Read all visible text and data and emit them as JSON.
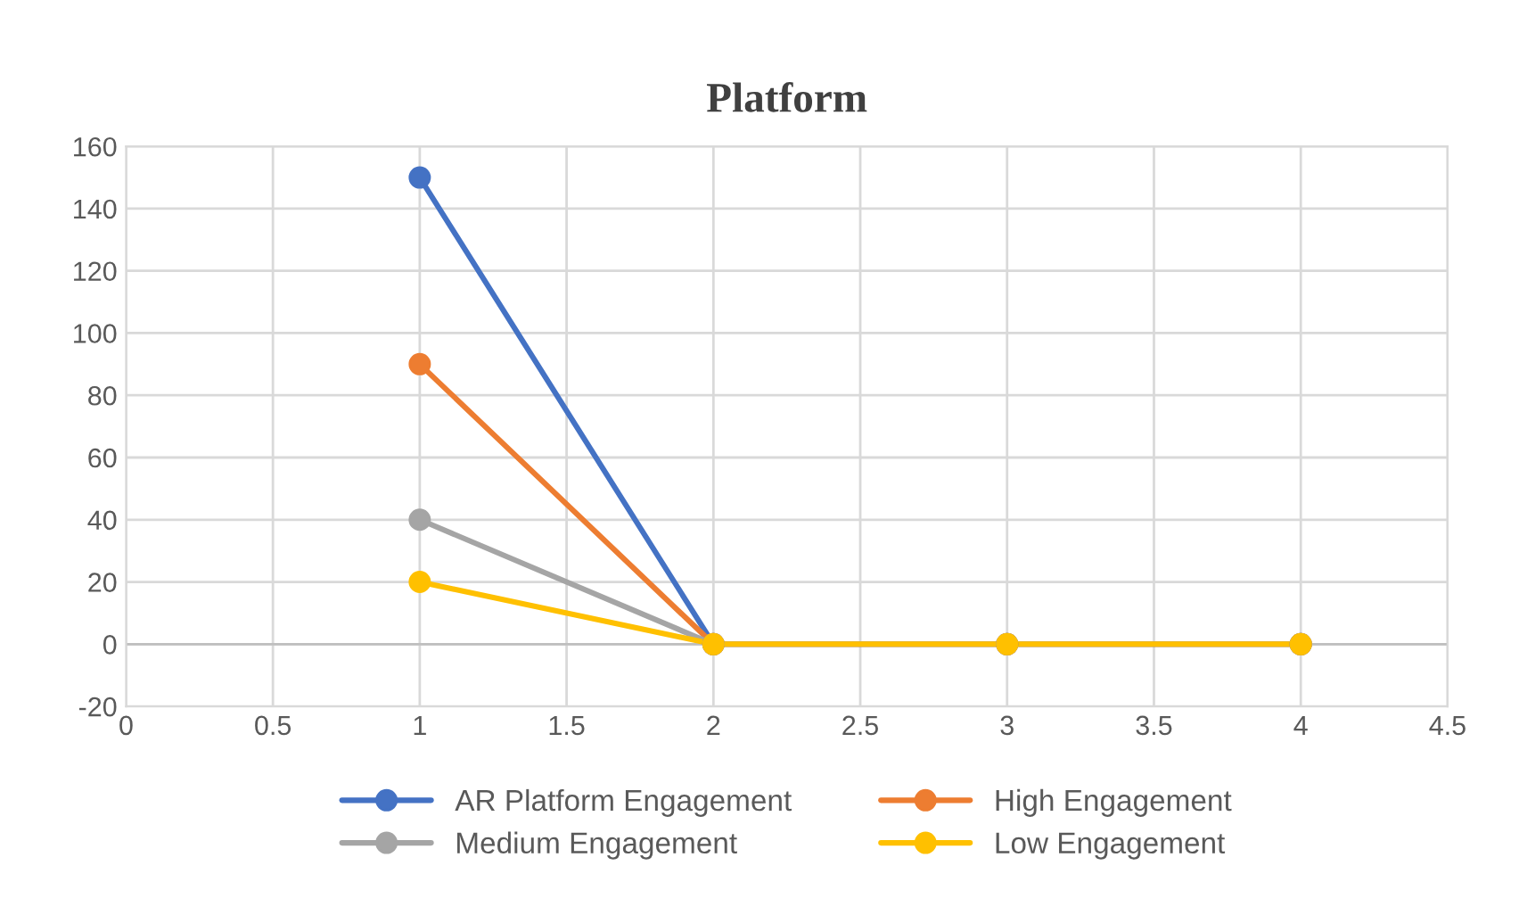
{
  "chart_data": {
    "type": "line",
    "title": "Platform",
    "x": [
      1,
      2,
      3,
      4
    ],
    "series": [
      {
        "name": "AR Platform Engagement",
        "color": "#4472c4",
        "values": [
          150,
          0,
          0,
          0
        ]
      },
      {
        "name": "High Engagement",
        "color": "#ed7d31",
        "values": [
          90,
          0,
          0,
          0
        ]
      },
      {
        "name": "Medium Engagement",
        "color": "#a5a5a5",
        "values": [
          40,
          0,
          0,
          0
        ]
      },
      {
        "name": "Low Engagement",
        "color": "#ffc000",
        "values": [
          20,
          0,
          0,
          0
        ]
      }
    ],
    "xlim": [
      0,
      4.5
    ],
    "xticks": [
      0,
      0.5,
      1,
      1.5,
      2,
      2.5,
      3,
      3.5,
      4,
      4.5
    ],
    "ylim": [
      -20,
      160
    ],
    "yticks": [
      -20,
      0,
      20,
      40,
      60,
      80,
      100,
      120,
      140,
      160
    ],
    "grid": true,
    "legend": "bottom",
    "marker": "circle",
    "line_style": "solid"
  }
}
